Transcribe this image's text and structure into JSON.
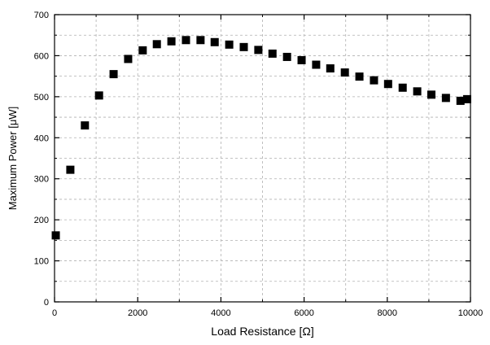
{
  "chart_data": {
    "type": "scatter",
    "xlabel": "Load Resistance [Ω]",
    "ylabel": "Maximum Power [μW]",
    "xlim": [
      0,
      10000
    ],
    "ylim": [
      0,
      700
    ],
    "x_ticks": [
      "0",
      "2000",
      "4000",
      "6000",
      "8000",
      "10000"
    ],
    "y_ticks": [
      "0",
      "100",
      "200",
      "300",
      "400",
      "500",
      "600",
      "700"
    ],
    "x_tick_values": [
      0,
      2000,
      4000,
      6000,
      8000,
      10000
    ],
    "y_tick_values": [
      0,
      100,
      200,
      300,
      400,
      500,
      600,
      700
    ],
    "x_minor_tick_values": [
      1000,
      3000,
      5000,
      7000,
      9000
    ],
    "y_minor_tick_values": [
      50,
      150,
      250,
      350,
      450,
      550,
      650
    ],
    "grid": true,
    "marker": "square",
    "colors": {
      "marker": "#000000",
      "grid": "#b0b0b0",
      "axis": "#000000"
    },
    "series": [
      {
        "points": [
          {
            "x": 30,
            "y": 162
          },
          {
            "x": 380,
            "y": 322
          },
          {
            "x": 730,
            "y": 430
          },
          {
            "x": 1070,
            "y": 503
          },
          {
            "x": 1420,
            "y": 555
          },
          {
            "x": 1770,
            "y": 592
          },
          {
            "x": 2120,
            "y": 613
          },
          {
            "x": 2460,
            "y": 628
          },
          {
            "x": 2810,
            "y": 635
          },
          {
            "x": 3160,
            "y": 638
          },
          {
            "x": 3510,
            "y": 638
          },
          {
            "x": 3850,
            "y": 633
          },
          {
            "x": 4200,
            "y": 627
          },
          {
            "x": 4550,
            "y": 621
          },
          {
            "x": 4900,
            "y": 614
          },
          {
            "x": 5240,
            "y": 605
          },
          {
            "x": 5590,
            "y": 597
          },
          {
            "x": 5940,
            "y": 589
          },
          {
            "x": 6290,
            "y": 578
          },
          {
            "x": 6630,
            "y": 569
          },
          {
            "x": 6980,
            "y": 559
          },
          {
            "x": 7330,
            "y": 549
          },
          {
            "x": 7680,
            "y": 540
          },
          {
            "x": 8020,
            "y": 531
          },
          {
            "x": 8370,
            "y": 522
          },
          {
            "x": 8720,
            "y": 513
          },
          {
            "x": 9060,
            "y": 505
          },
          {
            "x": 9410,
            "y": 497
          },
          {
            "x": 9760,
            "y": 490
          },
          {
            "x": 9920,
            "y": 494
          }
        ]
      }
    ]
  }
}
